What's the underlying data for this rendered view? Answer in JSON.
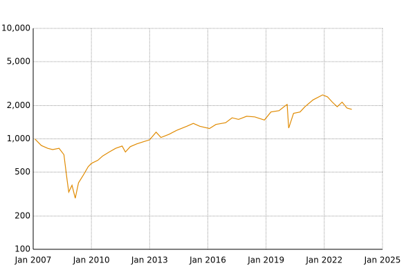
{
  "chart_data": {
    "type": "line",
    "log_y": true,
    "grid": true,
    "xlim": [
      "2007-01",
      "2025-01"
    ],
    "xticks": [
      {
        "value": "2007-01",
        "label": "Jan 2007"
      },
      {
        "value": "2010-01",
        "label": "Jan 2010"
      },
      {
        "value": "2013-01",
        "label": "Jan 2013"
      },
      {
        "value": "2016-01",
        "label": "Jan 2016"
      },
      {
        "value": "2019-01",
        "label": "Jan 2019"
      },
      {
        "value": "2022-01",
        "label": "Jan 2022"
      },
      {
        "value": "2025-01",
        "label": "Jan 2025"
      }
    ],
    "ylim": [
      100,
      10000
    ],
    "yticks": [
      100,
      200,
      500,
      {
        "value": 1000,
        "label": "1,000"
      },
      {
        "value": 2000,
        "label": "2,000"
      },
      {
        "value": 5000,
        "label": "5,000"
      },
      {
        "value": 10000,
        "label": "10,000"
      }
    ],
    "x": [
      "2007-02",
      "2007-06",
      "2007-10",
      "2008-01",
      "2008-05",
      "2008-08",
      "2008-10",
      "2008-11",
      "2009-01",
      "2009-03",
      "2009-05",
      "2009-08",
      "2009-11",
      "2010-01",
      "2010-05",
      "2010-08",
      "2010-12",
      "2011-04",
      "2011-08",
      "2011-10",
      "2012-01",
      "2012-05",
      "2012-10",
      "2013-01",
      "2013-05",
      "2013-08",
      "2014-01",
      "2014-06",
      "2014-12",
      "2015-04",
      "2015-08",
      "2016-02",
      "2016-06",
      "2016-12",
      "2017-04",
      "2017-08",
      "2018-01",
      "2018-06",
      "2018-12",
      "2019-04",
      "2019-09",
      "2020-01",
      "2020-02",
      "2020-03",
      "2020-06",
      "2020-10",
      "2021-01",
      "2021-06",
      "2021-12",
      "2022-03",
      "2022-06",
      "2022-09",
      "2022-12",
      "2023-03",
      "2023-06"
    ],
    "series": [
      {
        "color": "#e08a00",
        "values": [
          1000,
          870,
          820,
          800,
          820,
          720,
          420,
          330,
          380,
          290,
          400,
          470,
          560,
          600,
          640,
          700,
          760,
          820,
          860,
          760,
          850,
          900,
          950,
          980,
          1150,
          1030,
          1100,
          1200,
          1300,
          1380,
          1300,
          1240,
          1350,
          1400,
          1550,
          1500,
          1600,
          1580,
          1480,
          1750,
          1800,
          2000,
          2050,
          1250,
          1700,
          1750,
          1950,
          2250,
          2500,
          2400,
          2150,
          1950,
          2150,
          1900,
          1850
        ]
      }
    ]
  }
}
